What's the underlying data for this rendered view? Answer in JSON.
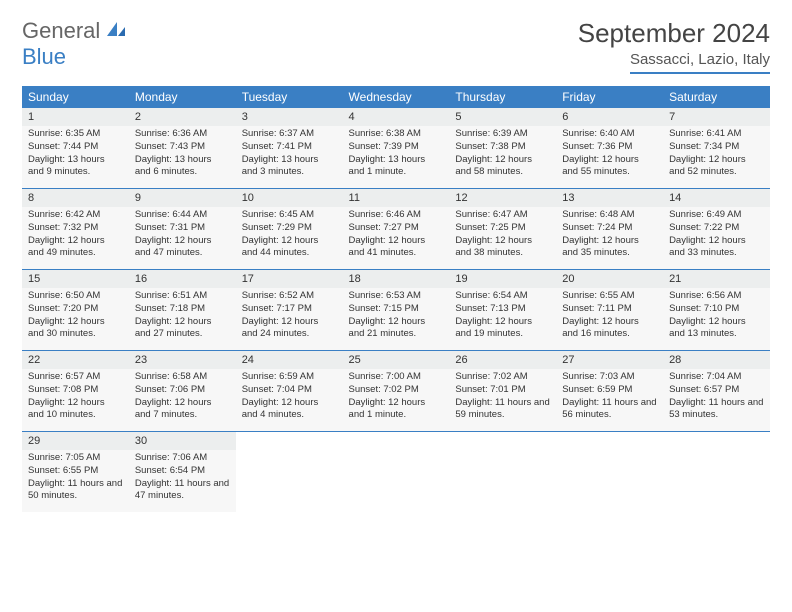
{
  "logo": {
    "line1": "General",
    "line2": "Blue"
  },
  "title": "September 2024",
  "location": "Sassacci, Lazio, Italy",
  "colors": {
    "accent": "#3a7fc4",
    "headerBg": "#3a7fc4",
    "headerText": "#ffffff",
    "dayBarBg": "#eceeee",
    "cellBg": "#f7f7f7",
    "text": "#333333"
  },
  "dayHeaders": [
    "Sunday",
    "Monday",
    "Tuesday",
    "Wednesday",
    "Thursday",
    "Friday",
    "Saturday"
  ],
  "weeks": [
    [
      {
        "n": "1",
        "sr": "Sunrise: 6:35 AM",
        "ss": "Sunset: 7:44 PM",
        "dl": "Daylight: 13 hours and 9 minutes."
      },
      {
        "n": "2",
        "sr": "Sunrise: 6:36 AM",
        "ss": "Sunset: 7:43 PM",
        "dl": "Daylight: 13 hours and 6 minutes."
      },
      {
        "n": "3",
        "sr": "Sunrise: 6:37 AM",
        "ss": "Sunset: 7:41 PM",
        "dl": "Daylight: 13 hours and 3 minutes."
      },
      {
        "n": "4",
        "sr": "Sunrise: 6:38 AM",
        "ss": "Sunset: 7:39 PM",
        "dl": "Daylight: 13 hours and 1 minute."
      },
      {
        "n": "5",
        "sr": "Sunrise: 6:39 AM",
        "ss": "Sunset: 7:38 PM",
        "dl": "Daylight: 12 hours and 58 minutes."
      },
      {
        "n": "6",
        "sr": "Sunrise: 6:40 AM",
        "ss": "Sunset: 7:36 PM",
        "dl": "Daylight: 12 hours and 55 minutes."
      },
      {
        "n": "7",
        "sr": "Sunrise: 6:41 AM",
        "ss": "Sunset: 7:34 PM",
        "dl": "Daylight: 12 hours and 52 minutes."
      }
    ],
    [
      {
        "n": "8",
        "sr": "Sunrise: 6:42 AM",
        "ss": "Sunset: 7:32 PM",
        "dl": "Daylight: 12 hours and 49 minutes."
      },
      {
        "n": "9",
        "sr": "Sunrise: 6:44 AM",
        "ss": "Sunset: 7:31 PM",
        "dl": "Daylight: 12 hours and 47 minutes."
      },
      {
        "n": "10",
        "sr": "Sunrise: 6:45 AM",
        "ss": "Sunset: 7:29 PM",
        "dl": "Daylight: 12 hours and 44 minutes."
      },
      {
        "n": "11",
        "sr": "Sunrise: 6:46 AM",
        "ss": "Sunset: 7:27 PM",
        "dl": "Daylight: 12 hours and 41 minutes."
      },
      {
        "n": "12",
        "sr": "Sunrise: 6:47 AM",
        "ss": "Sunset: 7:25 PM",
        "dl": "Daylight: 12 hours and 38 minutes."
      },
      {
        "n": "13",
        "sr": "Sunrise: 6:48 AM",
        "ss": "Sunset: 7:24 PM",
        "dl": "Daylight: 12 hours and 35 minutes."
      },
      {
        "n": "14",
        "sr": "Sunrise: 6:49 AM",
        "ss": "Sunset: 7:22 PM",
        "dl": "Daylight: 12 hours and 33 minutes."
      }
    ],
    [
      {
        "n": "15",
        "sr": "Sunrise: 6:50 AM",
        "ss": "Sunset: 7:20 PM",
        "dl": "Daylight: 12 hours and 30 minutes."
      },
      {
        "n": "16",
        "sr": "Sunrise: 6:51 AM",
        "ss": "Sunset: 7:18 PM",
        "dl": "Daylight: 12 hours and 27 minutes."
      },
      {
        "n": "17",
        "sr": "Sunrise: 6:52 AM",
        "ss": "Sunset: 7:17 PM",
        "dl": "Daylight: 12 hours and 24 minutes."
      },
      {
        "n": "18",
        "sr": "Sunrise: 6:53 AM",
        "ss": "Sunset: 7:15 PM",
        "dl": "Daylight: 12 hours and 21 minutes."
      },
      {
        "n": "19",
        "sr": "Sunrise: 6:54 AM",
        "ss": "Sunset: 7:13 PM",
        "dl": "Daylight: 12 hours and 19 minutes."
      },
      {
        "n": "20",
        "sr": "Sunrise: 6:55 AM",
        "ss": "Sunset: 7:11 PM",
        "dl": "Daylight: 12 hours and 16 minutes."
      },
      {
        "n": "21",
        "sr": "Sunrise: 6:56 AM",
        "ss": "Sunset: 7:10 PM",
        "dl": "Daylight: 12 hours and 13 minutes."
      }
    ],
    [
      {
        "n": "22",
        "sr": "Sunrise: 6:57 AM",
        "ss": "Sunset: 7:08 PM",
        "dl": "Daylight: 12 hours and 10 minutes."
      },
      {
        "n": "23",
        "sr": "Sunrise: 6:58 AM",
        "ss": "Sunset: 7:06 PM",
        "dl": "Daylight: 12 hours and 7 minutes."
      },
      {
        "n": "24",
        "sr": "Sunrise: 6:59 AM",
        "ss": "Sunset: 7:04 PM",
        "dl": "Daylight: 12 hours and 4 minutes."
      },
      {
        "n": "25",
        "sr": "Sunrise: 7:00 AM",
        "ss": "Sunset: 7:02 PM",
        "dl": "Daylight: 12 hours and 1 minute."
      },
      {
        "n": "26",
        "sr": "Sunrise: 7:02 AM",
        "ss": "Sunset: 7:01 PM",
        "dl": "Daylight: 11 hours and 59 minutes."
      },
      {
        "n": "27",
        "sr": "Sunrise: 7:03 AM",
        "ss": "Sunset: 6:59 PM",
        "dl": "Daylight: 11 hours and 56 minutes."
      },
      {
        "n": "28",
        "sr": "Sunrise: 7:04 AM",
        "ss": "Sunset: 6:57 PM",
        "dl": "Daylight: 11 hours and 53 minutes."
      }
    ],
    [
      {
        "n": "29",
        "sr": "Sunrise: 7:05 AM",
        "ss": "Sunset: 6:55 PM",
        "dl": "Daylight: 11 hours and 50 minutes."
      },
      {
        "n": "30",
        "sr": "Sunrise: 7:06 AM",
        "ss": "Sunset: 6:54 PM",
        "dl": "Daylight: 11 hours and 47 minutes."
      },
      null,
      null,
      null,
      null,
      null
    ]
  ]
}
